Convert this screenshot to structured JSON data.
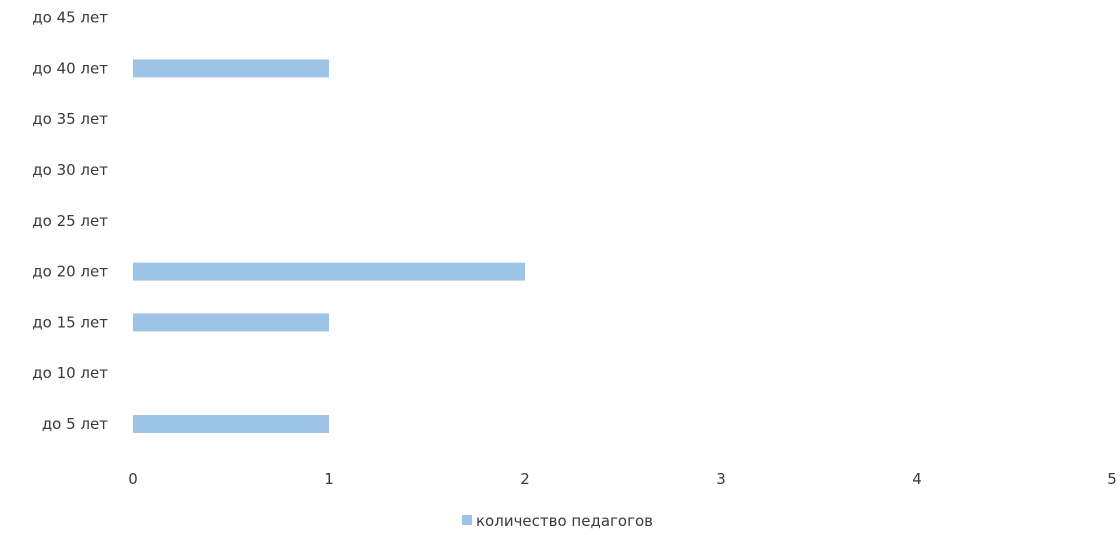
{
  "chart_data": {
    "type": "bar",
    "orientation": "horizontal",
    "categories": [
      "до 5 лет",
      "до 10 лет",
      "до 15 лет",
      "до 20 лет",
      "до 25 лет",
      "до 30 лет",
      "до 35 лет",
      "до 40 лет",
      "до 45 лет"
    ],
    "series": [
      {
        "name": "количество педагогов",
        "values": [
          1,
          0,
          1,
          2,
          0,
          0,
          0,
          1,
          0
        ],
        "color": "#9dc3e6"
      }
    ],
    "xlim": [
      0,
      5
    ],
    "x_ticks": [
      0,
      1,
      2,
      3,
      4,
      5
    ],
    "grid": false,
    "legend_position": "bottom"
  }
}
